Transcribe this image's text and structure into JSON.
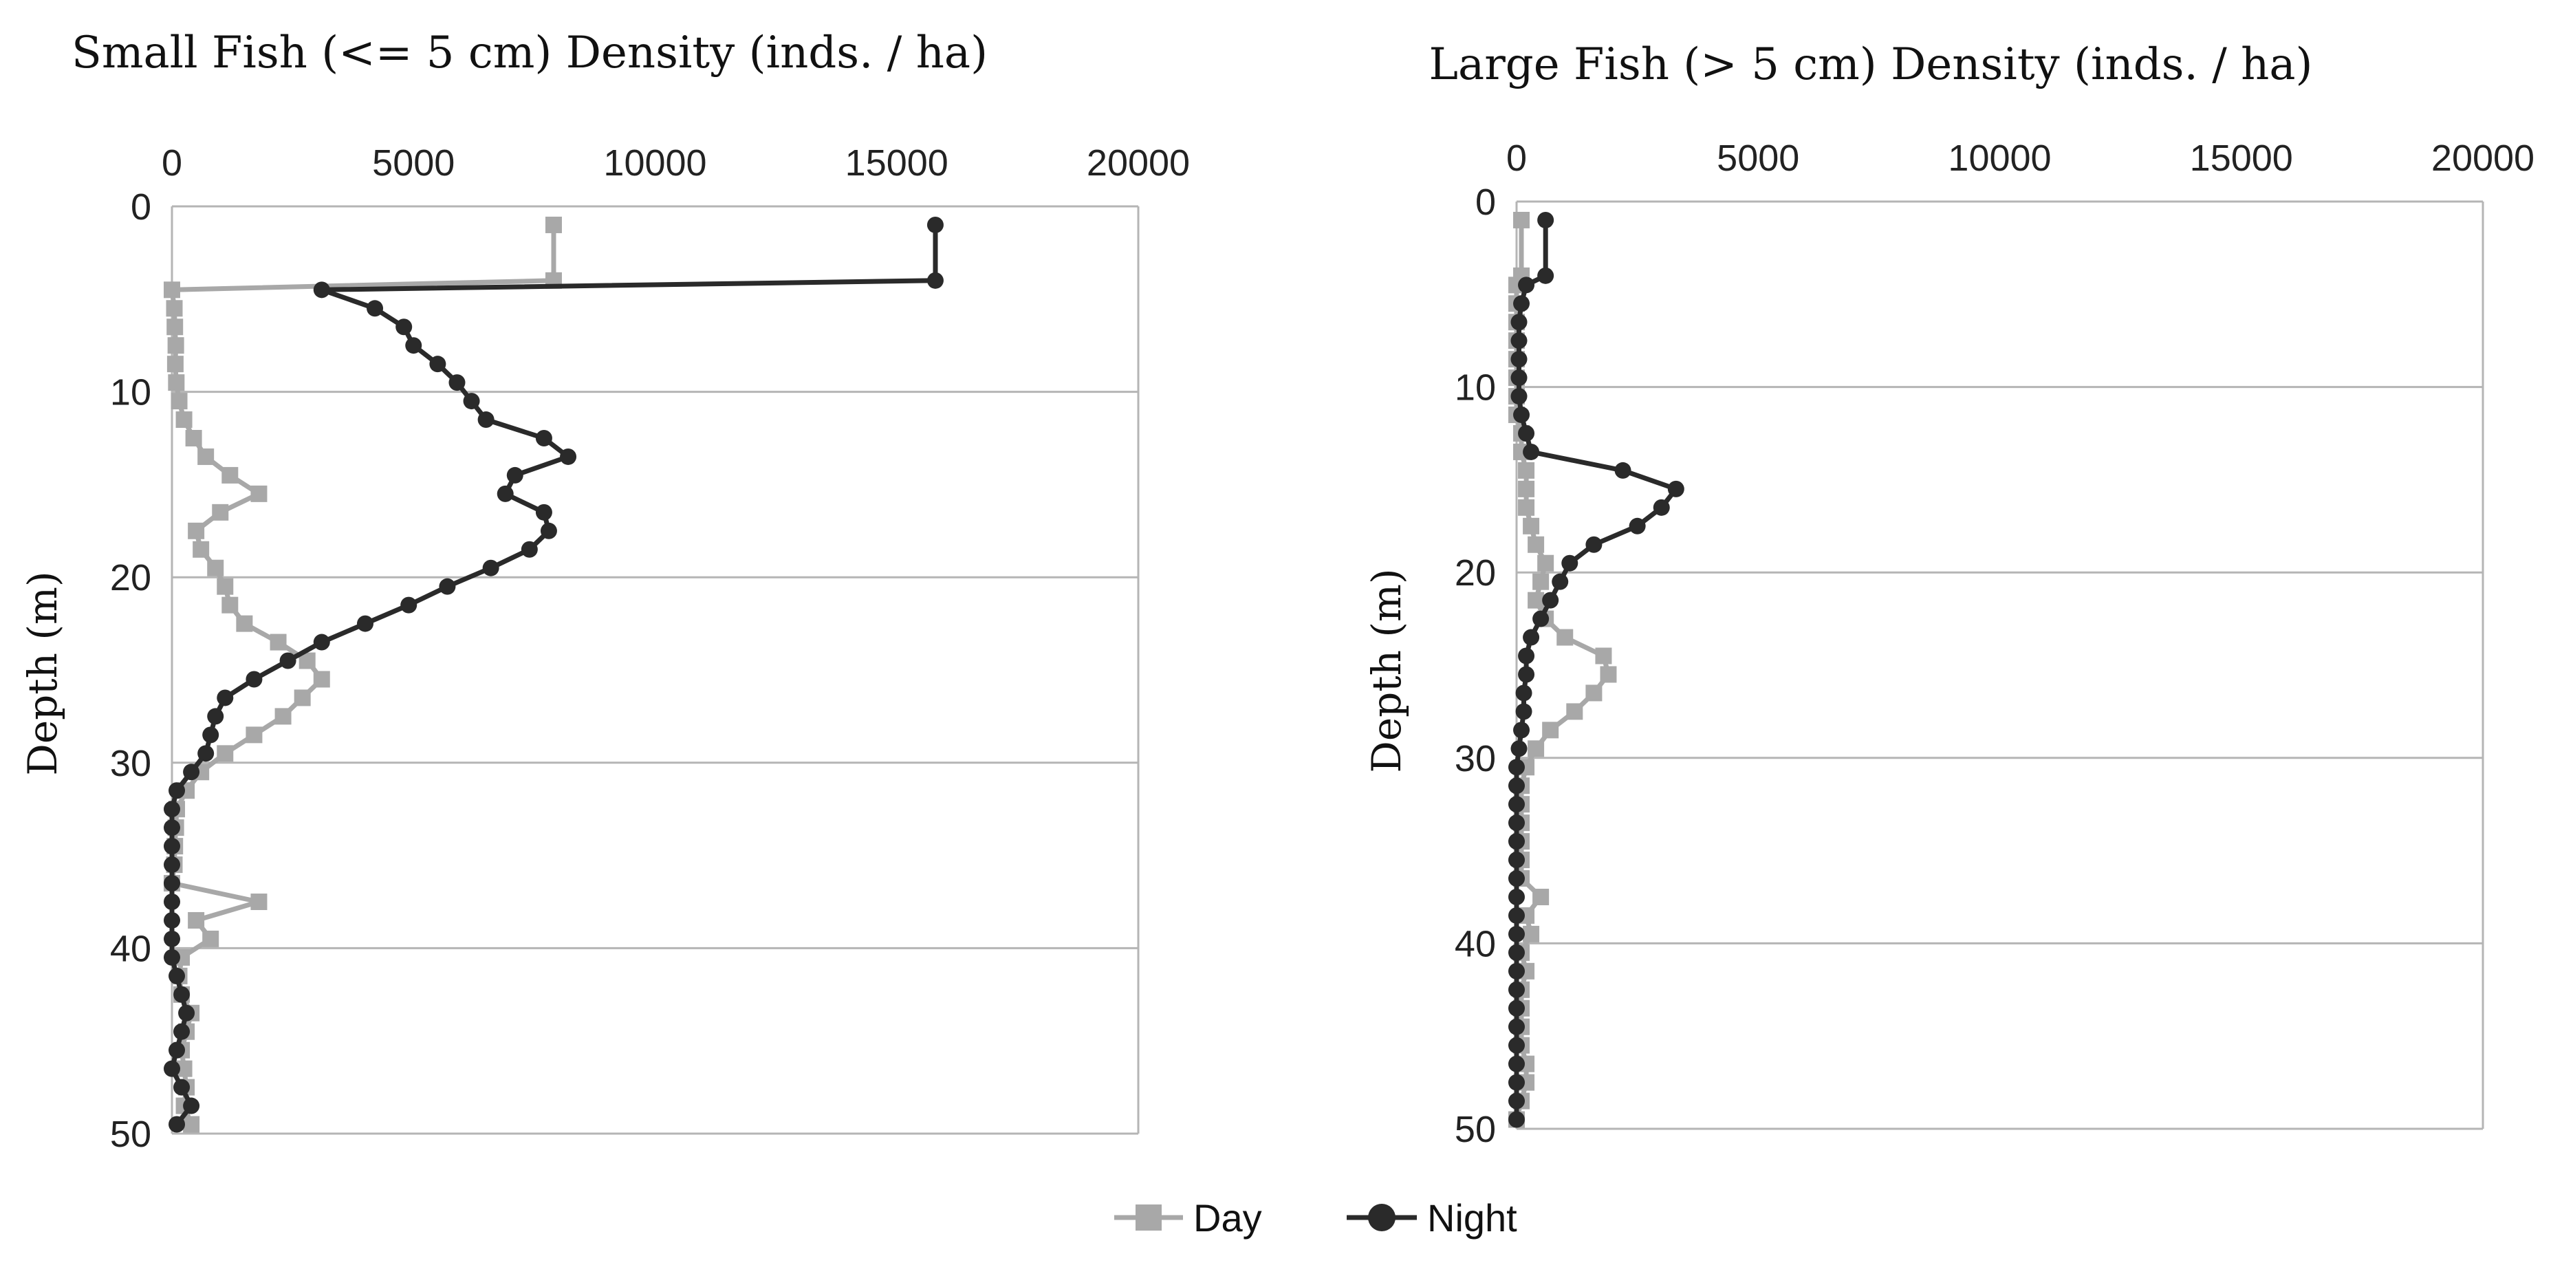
{
  "legend": {
    "items": [
      {
        "label": "Day",
        "color": "#a8a8a8",
        "marker": "square"
      },
      {
        "label": "Night",
        "color": "#2a2a2a",
        "marker": "circle"
      }
    ]
  },
  "chart_data": [
    {
      "type": "line",
      "title": "Small Fish (<= 5 cm) Density (inds. / ha)",
      "xlabel": "",
      "ylabel": "Depth (m)",
      "xlim": [
        0,
        20000
      ],
      "ylim": [
        0,
        50
      ],
      "x_ticks": [
        0,
        5000,
        10000,
        15000,
        20000
      ],
      "x_tick_labels": [
        "0",
        "5000",
        "10000",
        "15000",
        "20000"
      ],
      "y_ticks": [
        0,
        10,
        20,
        30,
        40,
        50
      ],
      "y_tick_labels": [
        "0",
        "10",
        "20",
        "30",
        "40",
        "50"
      ],
      "x_axis_position": "top",
      "y_inverted": true,
      "grid": "horizontal",
      "series": [
        {
          "name": "Day",
          "color": "#a8a8a8",
          "marker": "square",
          "points": [
            [
              7900,
              1
            ],
            [
              7900,
              4
            ],
            [
              0,
              4.5
            ],
            [
              50,
              5.5
            ],
            [
              60,
              6.5
            ],
            [
              80,
              7.5
            ],
            [
              70,
              8.5
            ],
            [
              90,
              9.5
            ],
            [
              150,
              10.5
            ],
            [
              250,
              11.5
            ],
            [
              450,
              12.5
            ],
            [
              700,
              13.5
            ],
            [
              1200,
              14.5
            ],
            [
              1800,
              15.5
            ],
            [
              1000,
              16.5
            ],
            [
              500,
              17.5
            ],
            [
              600,
              18.5
            ],
            [
              900,
              19.5
            ],
            [
              1100,
              20.5
            ],
            [
              1200,
              21.5
            ],
            [
              1500,
              22.5
            ],
            [
              2200,
              23.5
            ],
            [
              2800,
              24.5
            ],
            [
              3100,
              25.5
            ],
            [
              2700,
              26.5
            ],
            [
              2300,
              27.5
            ],
            [
              1700,
              28.5
            ],
            [
              1100,
              29.5
            ],
            [
              600,
              30.5
            ],
            [
              300,
              31.5
            ],
            [
              100,
              32.5
            ],
            [
              80,
              33.5
            ],
            [
              60,
              34.5
            ],
            [
              50,
              35.5
            ],
            [
              0,
              36.5
            ],
            [
              1800,
              37.5
            ],
            [
              500,
              38.5
            ],
            [
              800,
              39.5
            ],
            [
              200,
              40.5
            ],
            [
              150,
              41.5
            ],
            [
              200,
              42.5
            ],
            [
              400,
              43.5
            ],
            [
              300,
              44.5
            ],
            [
              200,
              45.5
            ],
            [
              250,
              46.5
            ],
            [
              300,
              47.5
            ],
            [
              250,
              48.5
            ],
            [
              400,
              49.5
            ]
          ]
        },
        {
          "name": "Night",
          "color": "#2a2a2a",
          "marker": "circle",
          "points": [
            [
              15800,
              1
            ],
            [
              15800,
              4
            ],
            [
              3100,
              4.5
            ],
            [
              4200,
              5.5
            ],
            [
              4800,
              6.5
            ],
            [
              5000,
              7.5
            ],
            [
              5500,
              8.5
            ],
            [
              5900,
              9.5
            ],
            [
              6200,
              10.5
            ],
            [
              6500,
              11.5
            ],
            [
              7700,
              12.5
            ],
            [
              8200,
              13.5
            ],
            [
              7100,
              14.5
            ],
            [
              6900,
              15.5
            ],
            [
              7700,
              16.5
            ],
            [
              7800,
              17.5
            ],
            [
              7400,
              18.5
            ],
            [
              6600,
              19.5
            ],
            [
              5700,
              20.5
            ],
            [
              4900,
              21.5
            ],
            [
              4000,
              22.5
            ],
            [
              3100,
              23.5
            ],
            [
              2400,
              24.5
            ],
            [
              1700,
              25.5
            ],
            [
              1100,
              26.5
            ],
            [
              900,
              27.5
            ],
            [
              800,
              28.5
            ],
            [
              700,
              29.5
            ],
            [
              400,
              30.5
            ],
            [
              100,
              31.5
            ],
            [
              0,
              32.5
            ],
            [
              0,
              33.5
            ],
            [
              0,
              34.5
            ],
            [
              0,
              35.5
            ],
            [
              0,
              36.5
            ],
            [
              0,
              37.5
            ],
            [
              0,
              38.5
            ],
            [
              0,
              39.5
            ],
            [
              0,
              40.5
            ],
            [
              100,
              41.5
            ],
            [
              200,
              42.5
            ],
            [
              300,
              43.5
            ],
            [
              200,
              44.5
            ],
            [
              100,
              45.5
            ],
            [
              0,
              46.5
            ],
            [
              200,
              47.5
            ],
            [
              400,
              48.5
            ],
            [
              100,
              49.5
            ]
          ]
        }
      ]
    },
    {
      "type": "line",
      "title": "Large Fish (> 5 cm) Density (inds. / ha)",
      "xlabel": "",
      "ylabel": "Depth (m)",
      "xlim": [
        0,
        20000
      ],
      "ylim": [
        0,
        50
      ],
      "x_ticks": [
        0,
        5000,
        10000,
        15000,
        20000
      ],
      "x_tick_labels": [
        "0",
        "5000",
        "10000",
        "15000",
        "20000"
      ],
      "y_ticks": [
        0,
        10,
        20,
        30,
        40,
        50
      ],
      "y_tick_labels": [
        "0",
        "10",
        "20",
        "30",
        "40",
        "50"
      ],
      "x_axis_position": "top",
      "y_inverted": true,
      "grid": "horizontal",
      "series": [
        {
          "name": "Day",
          "color": "#a8a8a8",
          "marker": "square",
          "points": [
            [
              100,
              1
            ],
            [
              100,
              4
            ],
            [
              0,
              4.5
            ],
            [
              0,
              5.5
            ],
            [
              0,
              6.5
            ],
            [
              0,
              7.5
            ],
            [
              0,
              8.5
            ],
            [
              0,
              9.5
            ],
            [
              0,
              10.5
            ],
            [
              0,
              11.5
            ],
            [
              100,
              12.5
            ],
            [
              100,
              13.5
            ],
            [
              200,
              14.5
            ],
            [
              200,
              15.5
            ],
            [
              200,
              16.5
            ],
            [
              300,
              17.5
            ],
            [
              400,
              18.5
            ],
            [
              600,
              19.5
            ],
            [
              500,
              20.5
            ],
            [
              400,
              21.5
            ],
            [
              600,
              22.5
            ],
            [
              1000,
              23.5
            ],
            [
              1800,
              24.5
            ],
            [
              1900,
              25.5
            ],
            [
              1600,
              26.5
            ],
            [
              1200,
              27.5
            ],
            [
              700,
              28.5
            ],
            [
              400,
              29.5
            ],
            [
              200,
              30.5
            ],
            [
              100,
              31.5
            ],
            [
              100,
              32.5
            ],
            [
              100,
              33.5
            ],
            [
              100,
              34.5
            ],
            [
              100,
              35.5
            ],
            [
              100,
              36.5
            ],
            [
              500,
              37.5
            ],
            [
              200,
              38.5
            ],
            [
              300,
              39.5
            ],
            [
              100,
              40.5
            ],
            [
              200,
              41.5
            ],
            [
              100,
              42.5
            ],
            [
              100,
              43.5
            ],
            [
              100,
              44.5
            ],
            [
              100,
              45.5
            ],
            [
              200,
              46.5
            ],
            [
              200,
              47.5
            ],
            [
              100,
              48.5
            ],
            [
              0,
              49.5
            ]
          ]
        },
        {
          "name": "Night",
          "color": "#2a2a2a",
          "marker": "circle",
          "points": [
            [
              600,
              1
            ],
            [
              600,
              4
            ],
            [
              200,
              4.5
            ],
            [
              100,
              5.5
            ],
            [
              50,
              6.5
            ],
            [
              50,
              7.5
            ],
            [
              50,
              8.5
            ],
            [
              50,
              9.5
            ],
            [
              50,
              10.5
            ],
            [
              100,
              11.5
            ],
            [
              200,
              12.5
            ],
            [
              300,
              13.5
            ],
            [
              2200,
              14.5
            ],
            [
              3300,
              15.5
            ],
            [
              3000,
              16.5
            ],
            [
              2500,
              17.5
            ],
            [
              1600,
              18.5
            ],
            [
              1100,
              19.5
            ],
            [
              900,
              20.5
            ],
            [
              700,
              21.5
            ],
            [
              500,
              22.5
            ],
            [
              300,
              23.5
            ],
            [
              200,
              24.5
            ],
            [
              200,
              25.5
            ],
            [
              150,
              26.5
            ],
            [
              150,
              27.5
            ],
            [
              100,
              28.5
            ],
            [
              50,
              29.5
            ],
            [
              0,
              30.5
            ],
            [
              0,
              31.5
            ],
            [
              0,
              32.5
            ],
            [
              0,
              33.5
            ],
            [
              0,
              34.5
            ],
            [
              0,
              35.5
            ],
            [
              0,
              36.5
            ],
            [
              0,
              37.5
            ],
            [
              0,
              38.5
            ],
            [
              0,
              39.5
            ],
            [
              0,
              40.5
            ],
            [
              0,
              41.5
            ],
            [
              0,
              42.5
            ],
            [
              0,
              43.5
            ],
            [
              0,
              44.5
            ],
            [
              0,
              45.5
            ],
            [
              0,
              46.5
            ],
            [
              0,
              47.5
            ],
            [
              0,
              48.5
            ],
            [
              0,
              49.5
            ]
          ]
        }
      ]
    }
  ]
}
